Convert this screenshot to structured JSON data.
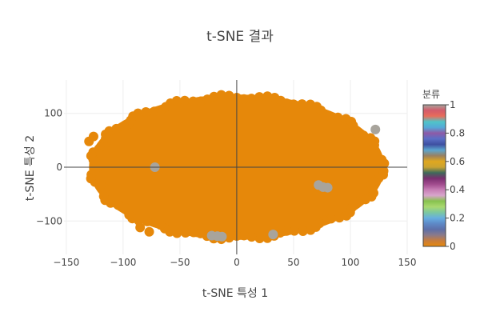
{
  "chart_data": {
    "type": "scatter",
    "title": "t-SNE 결과",
    "xlabel": "t-SNE 특성 1",
    "ylabel": "t-SNE 특성 2",
    "xlim": [
      -152,
      150
    ],
    "ylim": [
      -162,
      162
    ],
    "xticks": [
      -150,
      -100,
      -50,
      0,
      50,
      100,
      150
    ],
    "yticks": [
      -100,
      0,
      100
    ],
    "xtick_labels": [
      "−150",
      "−100",
      "−50",
      "0",
      "50",
      "100",
      "150"
    ],
    "ytick_labels": [
      "−100",
      "0",
      "100"
    ],
    "grid": true,
    "zero_lines": true,
    "cloud": {
      "shape": "ellipse",
      "center": [
        0,
        0
      ],
      "semi_axis_x": 130,
      "semi_axis_y": 135,
      "class_value": 0.6,
      "color": "#E6880A"
    },
    "points": [
      {
        "x": -130,
        "y": 48,
        "value": 0.6
      },
      {
        "x": -126,
        "y": 57,
        "value": 0.6
      },
      {
        "x": -85,
        "y": -112,
        "value": 0.6
      },
      {
        "x": -77,
        "y": -120,
        "value": 0.6
      },
      {
        "x": 122,
        "y": 70,
        "value": 1
      },
      {
        "x": -72,
        "y": 0,
        "value": 1
      },
      {
        "x": 72,
        "y": -33,
        "value": 1
      },
      {
        "x": 76,
        "y": -37,
        "value": 1
      },
      {
        "x": 80,
        "y": -38,
        "value": 1
      },
      {
        "x": -22,
        "y": -127,
        "value": 1
      },
      {
        "x": -17,
        "y": -128,
        "value": 1
      },
      {
        "x": -13,
        "y": -129,
        "value": 1
      },
      {
        "x": 32,
        "y": -125,
        "value": 1
      }
    ],
    "colorbar": {
      "title": "분류",
      "range": [
        0,
        1
      ],
      "ticks": [
        0,
        0.2,
        0.4,
        0.6,
        0.8,
        1
      ],
      "tick_labels": [
        "0",
        "0.2",
        "0.4",
        "0.6",
        "0.8",
        "1"
      ],
      "stops": [
        [
          0.0,
          "#E6880A"
        ],
        [
          0.04,
          "#C87C3A"
        ],
        [
          0.08,
          "#8A7A8A"
        ],
        [
          0.12,
          "#5D6FA8"
        ],
        [
          0.16,
          "#5E88C6"
        ],
        [
          0.2,
          "#66AEE0"
        ],
        [
          0.24,
          "#7CC8A0"
        ],
        [
          0.28,
          "#A9D86F"
        ],
        [
          0.32,
          "#86C24E"
        ],
        [
          0.36,
          "#D8A5CC"
        ],
        [
          0.4,
          "#C77EB5"
        ],
        [
          0.44,
          "#A04A8D"
        ],
        [
          0.48,
          "#7A2E6F"
        ],
        [
          0.52,
          "#3E6A5B"
        ],
        [
          0.56,
          "#C9A331"
        ],
        [
          0.6,
          "#E0A81F"
        ],
        [
          0.64,
          "#9A8160"
        ],
        [
          0.68,
          "#5BA6CF"
        ],
        [
          0.72,
          "#3E4FA1"
        ],
        [
          0.76,
          "#5A6FC6"
        ],
        [
          0.8,
          "#8E5AA6"
        ],
        [
          0.84,
          "#54A8D8"
        ],
        [
          0.88,
          "#4FC4C8"
        ],
        [
          0.92,
          "#E86D5A"
        ],
        [
          0.96,
          "#D45A6A"
        ],
        [
          1.0,
          "#A8A49C"
        ]
      ]
    }
  }
}
